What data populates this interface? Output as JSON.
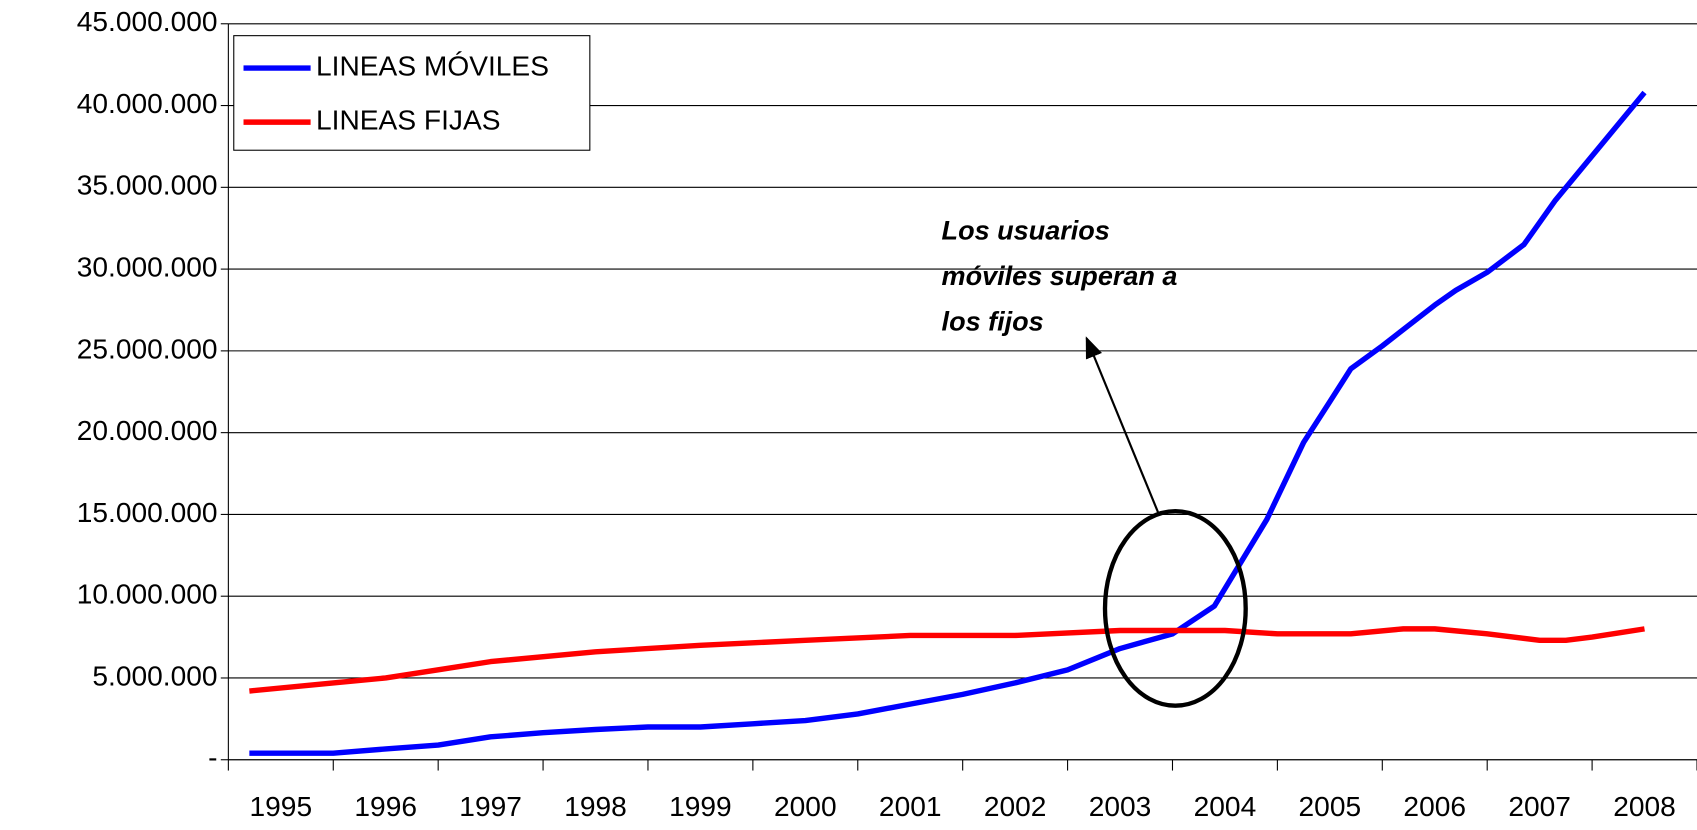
{
  "chart_data": {
    "type": "line",
    "annotation": [
      "Los usuarios",
      "móviles superan a",
      "los fijos"
    ],
    "xlim": [
      1995,
      2009
    ],
    "xticks": [
      {
        "value": 1995.5,
        "label": "1995"
      },
      {
        "value": 1996.5,
        "label": "1996"
      },
      {
        "value": 1997.5,
        "label": "1997"
      },
      {
        "value": 1998.5,
        "label": "1998"
      },
      {
        "value": 1999.5,
        "label": "1999"
      },
      {
        "value": 2000.5,
        "label": "2000"
      },
      {
        "value": 2001.5,
        "label": "2001"
      },
      {
        "value": 2002.5,
        "label": "2002"
      },
      {
        "value": 2003.5,
        "label": "2003"
      },
      {
        "value": 2004.5,
        "label": "2004"
      },
      {
        "value": 2005.5,
        "label": "2005"
      },
      {
        "value": 2006.5,
        "label": "2006"
      },
      {
        "value": 2007.5,
        "label": "2007"
      },
      {
        "value": 2008.5,
        "label": "2008"
      }
    ],
    "ylim": [
      0,
      45000000
    ],
    "yticks": [
      {
        "value": 0,
        "label": "-"
      },
      {
        "value": 5000000,
        "label": "5.000.000"
      },
      {
        "value": 10000000,
        "label": "10.000.000"
      },
      {
        "value": 15000000,
        "label": "15.000.000"
      },
      {
        "value": 20000000,
        "label": "20.000.000"
      },
      {
        "value": 25000000,
        "label": "25.000.000"
      },
      {
        "value": 30000000,
        "label": "30.000.000"
      },
      {
        "value": 35000000,
        "label": "35.000.000"
      },
      {
        "value": 40000000,
        "label": "40.000.000"
      },
      {
        "value": 45000000,
        "label": "45.000.000"
      }
    ],
    "grid": true,
    "legend": "upper left",
    "series": [
      {
        "name": "LINEAS MÓVILES",
        "color": "#0000ff",
        "x": [
          1995.2,
          1996.0,
          1996.5,
          1997.0,
          1997.5,
          1998.0,
          1998.5,
          1999.0,
          1999.5,
          2000.0,
          2000.5,
          2001.0,
          2001.5,
          2002.0,
          2002.5,
          2003.0,
          2003.5,
          2004.0,
          2004.4,
          2004.9,
          2005.25,
          2005.5,
          2005.7,
          2006.0,
          2006.5,
          2006.7,
          2007.0,
          2007.35,
          2007.65,
          2008.5
        ],
        "values": [
          400000,
          400000,
          660000,
          900000,
          1400000,
          1650000,
          1850000,
          2000000,
          2000000,
          2200000,
          2400000,
          2800000,
          3400000,
          4000000,
          4700000,
          5500000,
          6800000,
          7700000,
          9400000,
          14700000,
          19400000,
          21900000,
          23900000,
          25300000,
          27800000,
          28700000,
          29800000,
          31500000,
          34200000,
          40800000
        ]
      },
      {
        "name": "LINEAS FIJAS",
        "color": "#ff0000",
        "x": [
          1995.2,
          1996.0,
          1996.5,
          1997.0,
          1997.5,
          1998.5,
          1999.5,
          2000.5,
          2001.5,
          2002.5,
          2003.5,
          2004.5,
          2005.0,
          2005.7,
          2006.2,
          2006.5,
          2007.0,
          2007.5,
          2007.75,
          2008.0,
          2008.5
        ],
        "values": [
          4200000,
          4700000,
          5000000,
          5500000,
          6000000,
          6600000,
          7000000,
          7300000,
          7600000,
          7600000,
          7900000,
          7900000,
          7700000,
          7700000,
          8000000,
          8000000,
          7700000,
          7300000,
          7300000,
          7500000,
          8000000
        ]
      }
    ]
  }
}
